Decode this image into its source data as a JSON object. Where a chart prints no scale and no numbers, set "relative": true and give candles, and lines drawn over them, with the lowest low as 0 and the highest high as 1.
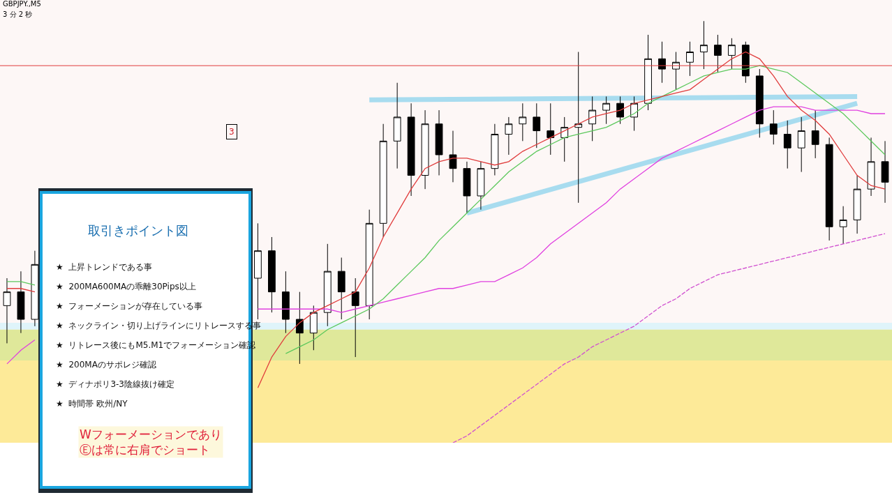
{
  "chart_data": {
    "type": "candlestick",
    "relative": true,
    "categories": [
      null,
      null,
      null,
      null,
      null,
      null,
      null,
      null,
      null,
      null,
      null,
      null,
      null,
      null,
      null,
      null,
      null,
      null,
      null,
      null,
      null,
      null,
      null,
      null,
      null,
      null,
      null,
      null,
      null,
      null,
      null,
      null,
      null,
      null,
      null,
      null,
      null,
      null,
      null,
      null,
      null,
      null,
      null,
      null,
      null,
      null,
      null,
      null,
      null,
      null,
      null,
      null,
      null,
      null,
      null,
      null,
      null,
      null,
      null,
      null,
      null,
      null,
      null,
      null
    ],
    "ohlc": [
      [
        0.17,
        0.25,
        0.06,
        0.21
      ],
      [
        0.21,
        0.27,
        0.09,
        0.13
      ],
      [
        0.13,
        0.33,
        0.11,
        0.29
      ],
      null,
      null,
      null,
      null,
      null,
      null,
      null,
      null,
      null,
      null,
      null,
      null,
      null,
      null,
      null,
      [
        0.25,
        0.41,
        0.13,
        0.33
      ],
      [
        0.33,
        0.37,
        0.15,
        0.21
      ],
      [
        0.21,
        0.27,
        0.09,
        0.13
      ],
      [
        0.13,
        0.21,
        0.0,
        0.09
      ],
      [
        0.09,
        0.17,
        0.04,
        0.15
      ],
      [
        0.15,
        0.35,
        0.11,
        0.27
      ],
      [
        0.27,
        0.31,
        0.13,
        0.21
      ],
      [
        0.21,
        0.25,
        0.02,
        0.17
      ],
      [
        0.17,
        0.45,
        0.13,
        0.41
      ],
      [
        0.41,
        0.7,
        0.37,
        0.65
      ],
      [
        0.65,
        0.82,
        0.57,
        0.72
      ],
      [
        0.72,
        0.76,
        0.49,
        0.55
      ],
      [
        0.55,
        0.74,
        0.51,
        0.7
      ],
      [
        0.7,
        0.74,
        0.55,
        0.61
      ],
      [
        0.61,
        0.68,
        0.53,
        0.57
      ],
      [
        0.57,
        0.59,
        0.44,
        0.49
      ],
      [
        0.49,
        0.59,
        0.45,
        0.57
      ],
      [
        0.57,
        0.7,
        0.55,
        0.67
      ],
      [
        0.67,
        0.72,
        0.61,
        0.7
      ],
      [
        0.7,
        0.76,
        0.65,
        0.72
      ],
      [
        0.72,
        0.76,
        0.63,
        0.68
      ],
      [
        0.68,
        0.76,
        0.61,
        0.66
      ],
      [
        0.66,
        0.72,
        0.59,
        0.69
      ],
      [
        0.69,
        0.91,
        0.47,
        0.7
      ],
      [
        0.7,
        0.78,
        0.65,
        0.74
      ],
      [
        0.74,
        0.78,
        0.7,
        0.76
      ],
      [
        0.76,
        0.78,
        0.7,
        0.72
      ],
      [
        0.72,
        0.78,
        0.68,
        0.76
      ],
      [
        0.76,
        0.96,
        0.74,
        0.89
      ],
      [
        0.89,
        0.94,
        0.82,
        0.86
      ],
      [
        0.86,
        0.91,
        0.8,
        0.88
      ],
      [
        0.88,
        0.94,
        0.84,
        0.91
      ],
      [
        0.91,
        1.0,
        0.86,
        0.93
      ],
      [
        0.93,
        0.96,
        0.85,
        0.9
      ],
      [
        0.9,
        0.95,
        0.86,
        0.93
      ],
      [
        0.93,
        0.94,
        0.82,
        0.84
      ],
      [
        0.84,
        0.86,
        0.66,
        0.7
      ],
      [
        0.7,
        0.74,
        0.64,
        0.67
      ],
      [
        0.67,
        0.71,
        0.57,
        0.63
      ],
      [
        0.63,
        0.72,
        0.56,
        0.68
      ],
      [
        0.68,
        0.74,
        0.6,
        0.64
      ],
      [
        0.64,
        0.66,
        0.36,
        0.4
      ],
      [
        0.4,
        0.46,
        0.35,
        0.42
      ],
      [
        0.42,
        0.55,
        0.38,
        0.51
      ],
      [
        0.51,
        0.66,
        0.49,
        0.59
      ],
      [
        0.59,
        0.65,
        0.47,
        0.53
      ]
    ],
    "series": [
      {
        "type": "line",
        "color": "#e040e0",
        "line_style": "solid",
        "values": [
          0.0,
          0.04,
          0.07,
          null,
          null,
          null,
          null,
          null,
          null,
          null,
          null,
          null,
          null,
          null,
          null,
          null,
          null,
          null,
          0.16,
          0.16,
          0.16,
          0.16,
          0.16,
          0.16,
          0.15,
          0.16,
          0.17,
          0.18,
          0.19,
          0.2,
          0.21,
          0.22,
          0.22,
          0.23,
          0.24,
          0.24,
          0.26,
          0.28,
          0.31,
          0.35,
          0.38,
          0.41,
          0.44,
          0.47,
          0.51,
          0.54,
          0.57,
          0.6,
          0.62,
          0.64,
          0.66,
          0.68,
          0.7,
          0.72,
          0.74,
          0.75,
          0.75,
          0.75,
          0.74,
          0.74,
          0.74,
          0.74,
          0.73,
          0.73
        ]
      },
      {
        "type": "line",
        "color": "#d050d0",
        "line_style": "dashed",
        "values": [
          null,
          null,
          null,
          null,
          null,
          null,
          null,
          null,
          null,
          null,
          null,
          null,
          null,
          null,
          null,
          null,
          null,
          null,
          null,
          null,
          null,
          null,
          null,
          null,
          null,
          null,
          null,
          null,
          null,
          null,
          null,
          null,
          -0.23,
          -0.21,
          -0.18,
          -0.15,
          -0.12,
          -0.09,
          -0.06,
          -0.03,
          0.0,
          0.02,
          0.05,
          0.07,
          0.09,
          0.11,
          0.14,
          0.17,
          0.19,
          0.22,
          0.24,
          0.26,
          0.27,
          0.28,
          0.29,
          0.3,
          0.31,
          0.32,
          0.33,
          0.34,
          0.35,
          0.36,
          0.37,
          0.38
        ]
      },
      {
        "type": "line",
        "color": "#5cc85c",
        "line_style": "solid",
        "values": [
          0.24,
          0.24,
          0.23,
          null,
          null,
          null,
          null,
          null,
          null,
          null,
          null,
          null,
          null,
          null,
          null,
          null,
          null,
          null,
          null,
          null,
          0.03,
          0.05,
          0.07,
          0.1,
          0.12,
          0.14,
          0.16,
          0.19,
          0.23,
          0.27,
          0.31,
          0.36,
          0.4,
          0.44,
          0.48,
          0.52,
          0.56,
          0.59,
          0.62,
          0.64,
          0.66,
          0.67,
          0.68,
          0.69,
          0.71,
          0.73,
          0.76,
          0.78,
          0.8,
          0.82,
          0.84,
          0.85,
          0.86,
          0.86,
          0.87,
          0.86,
          0.85,
          0.82,
          0.79,
          0.76,
          0.73,
          0.69,
          0.65,
          0.61
        ]
      },
      {
        "type": "line",
        "color": "#e03c3c",
        "line_style": "solid",
        "values": [
          0.22,
          0.22,
          0.21,
          null,
          null,
          null,
          null,
          null,
          null,
          null,
          null,
          null,
          null,
          null,
          null,
          null,
          null,
          null,
          -0.07,
          0.02,
          0.08,
          0.12,
          0.15,
          0.17,
          0.19,
          0.21,
          0.28,
          0.37,
          0.44,
          0.51,
          0.57,
          0.59,
          0.6,
          0.6,
          0.59,
          0.58,
          0.59,
          0.62,
          0.64,
          0.66,
          0.68,
          0.7,
          0.72,
          0.73,
          0.74,
          0.76,
          0.77,
          0.78,
          0.79,
          0.8,
          0.83,
          0.86,
          0.89,
          0.91,
          0.89,
          0.84,
          0.78,
          0.74,
          0.71,
          0.67,
          0.61,
          0.55,
          0.52,
          0.51
        ]
      },
      {
        "type": "line",
        "color": "#a8dcef",
        "line_style": "solid",
        "values": [
          null,
          null,
          null,
          null,
          null,
          null,
          null,
          null,
          null,
          null,
          null,
          null,
          null,
          null,
          null,
          null,
          null,
          null,
          null,
          null,
          null,
          null,
          null,
          null,
          null,
          null,
          0.77,
          null,
          null,
          null,
          null,
          null,
          null,
          null,
          null,
          null,
          null,
          null,
          null,
          null,
          null,
          null,
          null,
          null,
          null,
          null,
          null,
          null,
          null,
          null,
          null,
          null,
          null,
          null,
          null,
          null,
          null,
          null,
          null,
          null,
          null,
          0.78,
          null,
          null
        ]
      },
      {
        "type": "line",
        "color": "#a8dcef",
        "line_style": "solid",
        "values": [
          null,
          null,
          null,
          null,
          null,
          null,
          null,
          null,
          null,
          null,
          null,
          null,
          null,
          null,
          null,
          null,
          null,
          null,
          null,
          null,
          null,
          null,
          null,
          null,
          null,
          null,
          null,
          null,
          null,
          null,
          null,
          null,
          null,
          0.44,
          null,
          null,
          null,
          null,
          null,
          null,
          null,
          null,
          null,
          null,
          null,
          null,
          null,
          null,
          null,
          null,
          null,
          null,
          null,
          null,
          null,
          null,
          null,
          null,
          null,
          null,
          null,
          0.76,
          null,
          null
        ]
      }
    ],
    "ref_lines": [
      {
        "axis": "y",
        "value": 0.87,
        "color": "#e03c3c"
      }
    ],
    "bands": [
      {
        "axis": "y",
        "from": 0.1,
        "to": 0.12,
        "color": "#dff4fa"
      },
      {
        "axis": "y",
        "from": 0.01,
        "to": 0.1,
        "color": "#dfe89a"
      },
      {
        "axis": "y",
        "from": -0.23,
        "to": 0.01,
        "color": "#fdea98"
      }
    ],
    "annotations": [
      "GBPJPY.,M5",
      "3 分 2 秒",
      "3",
      "取引きポイント図",
      "★  上昇トレンドである事",
      "★  200MA600MAの乖離30Pips以上",
      "★  フォーメーションが存在している事",
      "★  ネックライン・切り上げラインにリトレースする事",
      "★  リトレース後にもM5.M1でフォーメーション確認",
      "★  200MAのサポレジ確認",
      "★  ディナポリ3-3陰線抜け確定",
      "★  時間帯 欧州/NY",
      "Wフォーメーションであり\nⒺは常に右肩でショート"
    ]
  }
}
